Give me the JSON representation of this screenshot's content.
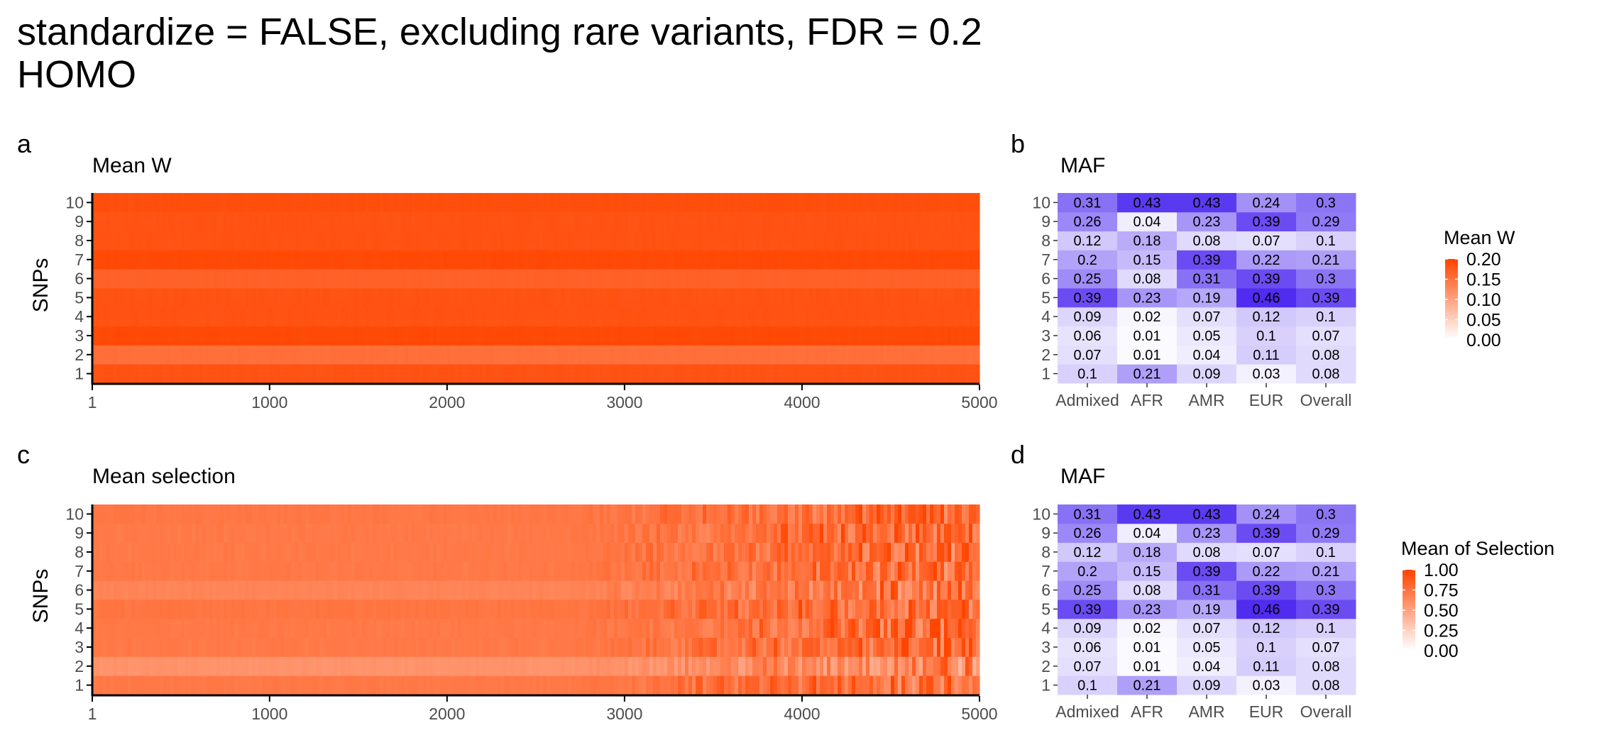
{
  "figure": {
    "title_line1": "standardize = FALSE, excluding rare variants, FDR = 0.2",
    "title_line2": "HOMO"
  },
  "colors": {
    "heat_low": "#ffffff",
    "heat_high": "#ff4500",
    "maf_low": "#ffffff",
    "maf_high": "#4f2cf0",
    "axis": "#000000",
    "tick_text": "#4d4d4d"
  },
  "chart_data": [
    {
      "panel": "a",
      "title": "Mean W",
      "type": "heatmap",
      "ylabel": "SNPs",
      "xlabel": "",
      "x_range": [
        1,
        5000
      ],
      "x_ticks": [
        "1",
        "1000",
        "2000",
        "3000",
        "4000",
        "5000"
      ],
      "y_categories": [
        "1",
        "2",
        "3",
        "4",
        "5",
        "6",
        "7",
        "8",
        "9",
        "10"
      ],
      "row_values": [
        0.185,
        0.155,
        0.195,
        0.185,
        0.185,
        0.17,
        0.195,
        0.185,
        0.185,
        0.19
      ],
      "fill_scale": {
        "name": "Mean W",
        "limits": [
          0,
          0.2
        ],
        "breaks": [
          "0.00",
          "0.05",
          "0.10",
          "0.15",
          "0.20"
        ]
      }
    },
    {
      "panel": "b",
      "title": "MAF",
      "type": "heatmap",
      "x_categories": [
        "Admixed",
        "AFR",
        "AMR",
        "EUR",
        "Overall"
      ],
      "y_categories": [
        "1",
        "2",
        "3",
        "4",
        "5",
        "6",
        "7",
        "8",
        "9",
        "10"
      ],
      "values": [
        [
          "0.1",
          "0.21",
          "0.09",
          "0.03",
          "0.08"
        ],
        [
          "0.07",
          "0.01",
          "0.04",
          "0.11",
          "0.08"
        ],
        [
          "0.06",
          "0.01",
          "0.05",
          "0.1",
          "0.07"
        ],
        [
          "0.09",
          "0.02",
          "0.07",
          "0.12",
          "0.1"
        ],
        [
          "0.39",
          "0.23",
          "0.19",
          "0.46",
          "0.39"
        ],
        [
          "0.25",
          "0.08",
          "0.31",
          "0.39",
          "0.3"
        ],
        [
          "0.2",
          "0.15",
          "0.39",
          "0.22",
          "0.21"
        ],
        [
          "0.12",
          "0.18",
          "0.08",
          "0.07",
          "0.1"
        ],
        [
          "0.26",
          "0.04",
          "0.23",
          "0.39",
          "0.29"
        ],
        [
          "0.31",
          "0.43",
          "0.43",
          "0.24",
          "0.3"
        ]
      ]
    },
    {
      "panel": "c",
      "title": "Mean selection",
      "type": "heatmap",
      "ylabel": "SNPs",
      "xlabel": "",
      "x_range": [
        1,
        5000
      ],
      "x_ticks": [
        "1",
        "1000",
        "2000",
        "3000",
        "4000",
        "5000"
      ],
      "y_categories": [
        "1",
        "2",
        "3",
        "4",
        "5",
        "6",
        "7",
        "8",
        "9",
        "10"
      ],
      "row_values": [
        0.72,
        0.58,
        0.72,
        0.72,
        0.74,
        0.66,
        0.72,
        0.72,
        0.72,
        0.73
      ],
      "noise_onset_x": 2600,
      "fill_scale": {
        "name": "Mean of Selection",
        "limits": [
          0,
          1
        ],
        "breaks": [
          "0.00",
          "0.25",
          "0.50",
          "0.75",
          "1.00"
        ]
      }
    },
    {
      "panel": "d",
      "title": "MAF",
      "type": "heatmap",
      "x_categories": [
        "Admixed",
        "AFR",
        "AMR",
        "EUR",
        "Overall"
      ],
      "y_categories": [
        "1",
        "2",
        "3",
        "4",
        "5",
        "6",
        "7",
        "8",
        "9",
        "10"
      ],
      "values": [
        [
          "0.1",
          "0.21",
          "0.09",
          "0.03",
          "0.08"
        ],
        [
          "0.07",
          "0.01",
          "0.04",
          "0.11",
          "0.08"
        ],
        [
          "0.06",
          "0.01",
          "0.05",
          "0.1",
          "0.07"
        ],
        [
          "0.09",
          "0.02",
          "0.07",
          "0.12",
          "0.1"
        ],
        [
          "0.39",
          "0.23",
          "0.19",
          "0.46",
          "0.39"
        ],
        [
          "0.25",
          "0.08",
          "0.31",
          "0.39",
          "0.3"
        ],
        [
          "0.2",
          "0.15",
          "0.39",
          "0.22",
          "0.21"
        ],
        [
          "0.12",
          "0.18",
          "0.08",
          "0.07",
          "0.1"
        ],
        [
          "0.26",
          "0.04",
          "0.23",
          "0.39",
          "0.29"
        ],
        [
          "0.31",
          "0.43",
          "0.43",
          "0.24",
          "0.3"
        ]
      ]
    }
  ]
}
